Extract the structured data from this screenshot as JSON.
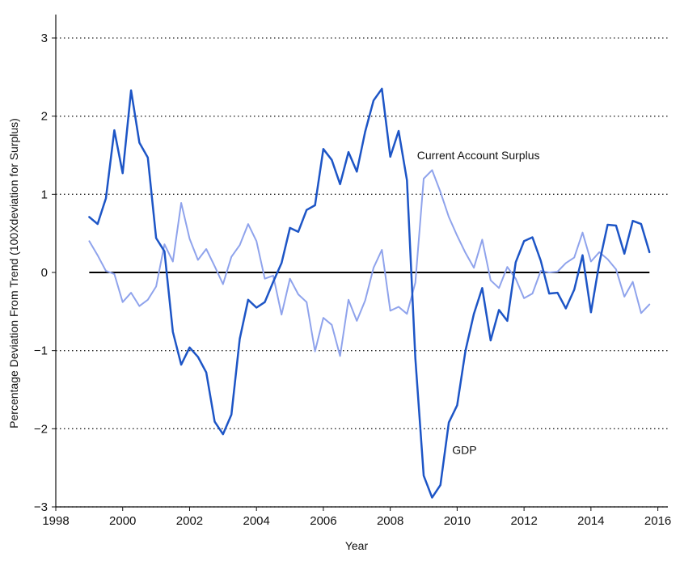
{
  "chart_data": {
    "type": "line",
    "title": "",
    "xlabel": "Year",
    "ylabel": "Percentage Deviation From Trend (100Xdeviation for Surplus)",
    "xlim": [
      1998,
      2016.3
    ],
    "ylim": [
      -3,
      3.3
    ],
    "x_ticks": [
      1998,
      2000,
      2002,
      2004,
      2006,
      2008,
      2010,
      2012,
      2014,
      2016
    ],
    "x_tick_labels": [
      "1998",
      "2000",
      "2002",
      "2004",
      "2006",
      "2008",
      "2010",
      "2012",
      "2014",
      "2016"
    ],
    "y_ticks": [
      -3,
      -2,
      -1,
      0,
      1,
      2,
      3
    ],
    "y_tick_labels": [
      "−3",
      "−2",
      "−1",
      "0",
      "1",
      "2",
      "3"
    ],
    "grid": "horizontal dotted",
    "colors": {
      "gdp": "#1d55c6",
      "surplus": "#8fa3ec",
      "zero_line": "#000000"
    },
    "series": [
      {
        "name": "GDP",
        "x": [
          1999.0,
          1999.25,
          1999.5,
          1999.75,
          2000.0,
          2000.25,
          2000.5,
          2000.75,
          2001.0,
          2001.25,
          2001.5,
          2001.75,
          2002.0,
          2002.25,
          2002.5,
          2002.75,
          2003.0,
          2003.25,
          2003.5,
          2003.75,
          2004.0,
          2004.25,
          2004.5,
          2004.75,
          2005.0,
          2005.25,
          2005.5,
          2005.75,
          2006.0,
          2006.25,
          2006.5,
          2006.75,
          2007.0,
          2007.25,
          2007.5,
          2007.75,
          2008.0,
          2008.25,
          2008.5,
          2008.75,
          2009.0,
          2009.25,
          2009.5,
          2009.75,
          2010.0,
          2010.25,
          2010.5,
          2010.75,
          2011.0,
          2011.25,
          2011.5,
          2011.75,
          2012.0,
          2012.25,
          2012.5,
          2012.75,
          2013.0,
          2013.25,
          2013.5,
          2013.75,
          2014.0,
          2014.25,
          2014.5,
          2014.75,
          2015.0,
          2015.25,
          2015.5,
          2015.75
        ],
        "y": [
          0.71,
          0.62,
          0.95,
          1.82,
          1.27,
          2.33,
          1.66,
          1.47,
          0.44,
          0.27,
          -0.76,
          -1.18,
          -0.96,
          -1.08,
          -1.28,
          -1.91,
          -2.07,
          -1.82,
          -0.85,
          -0.35,
          -0.45,
          -0.38,
          -0.12,
          0.12,
          0.57,
          0.52,
          0.8,
          0.86,
          1.58,
          1.44,
          1.13,
          1.54,
          1.29,
          1.8,
          2.2,
          2.35,
          1.48,
          1.81,
          1.18,
          -1.1,
          -2.6,
          -2.88,
          -2.72,
          -1.92,
          -1.7,
          -1.0,
          -0.53,
          -0.2,
          -0.87,
          -0.48,
          -0.62,
          0.13,
          0.4,
          0.45,
          0.15,
          -0.27,
          -0.26,
          -0.46,
          -0.22,
          0.22,
          -0.51,
          0.12,
          0.61,
          0.6,
          0.24,
          0.66,
          0.62,
          0.26
        ]
      },
      {
        "name": "Current Account Surplus",
        "x": [
          1999.0,
          1999.25,
          1999.5,
          1999.75,
          2000.0,
          2000.25,
          2000.5,
          2000.75,
          2001.0,
          2001.25,
          2001.5,
          2001.75,
          2002.0,
          2002.25,
          2002.5,
          2002.75,
          2003.0,
          2003.25,
          2003.5,
          2003.75,
          2004.0,
          2004.25,
          2004.5,
          2004.75,
          2005.0,
          2005.25,
          2005.5,
          2005.75,
          2006.0,
          2006.25,
          2006.5,
          2006.75,
          2007.0,
          2007.25,
          2007.5,
          2007.75,
          2008.0,
          2008.25,
          2008.5,
          2008.75,
          2009.0,
          2009.25,
          2009.5,
          2009.75,
          2010.0,
          2010.25,
          2010.5,
          2010.75,
          2011.0,
          2011.25,
          2011.5,
          2011.75,
          2012.0,
          2012.25,
          2012.5,
          2012.75,
          2013.0,
          2013.25,
          2013.5,
          2013.75,
          2014.0,
          2014.25,
          2014.5,
          2014.75,
          2015.0,
          2015.25,
          2015.5,
          2015.75
        ],
        "y": [
          0.4,
          0.22,
          0.02,
          -0.02,
          -0.38,
          -0.26,
          -0.43,
          -0.35,
          -0.18,
          0.36,
          0.14,
          0.89,
          0.43,
          0.16,
          0.3,
          0.08,
          -0.15,
          0.2,
          0.35,
          0.62,
          0.4,
          -0.08,
          -0.04,
          -0.54,
          -0.08,
          -0.28,
          -0.38,
          -1.01,
          -0.58,
          -0.67,
          -1.07,
          -0.35,
          -0.62,
          -0.36,
          0.06,
          0.29,
          -0.49,
          -0.44,
          -0.53,
          -0.13,
          1.2,
          1.31,
          1.03,
          0.71,
          0.47,
          0.25,
          0.06,
          0.42,
          -0.1,
          -0.2,
          0.07,
          -0.08,
          -0.33,
          -0.27,
          0.02,
          0.0,
          0.01,
          0.12,
          0.19,
          0.51,
          0.14,
          0.26,
          0.17,
          0.04,
          -0.31,
          -0.12,
          -0.52,
          -0.41
        ]
      }
    ],
    "annotations": [
      {
        "text": "Current Account Surplus",
        "x": 2008.8,
        "y": 1.45
      },
      {
        "text": "GDP",
        "x": 2009.85,
        "y": -2.32
      }
    ]
  }
}
